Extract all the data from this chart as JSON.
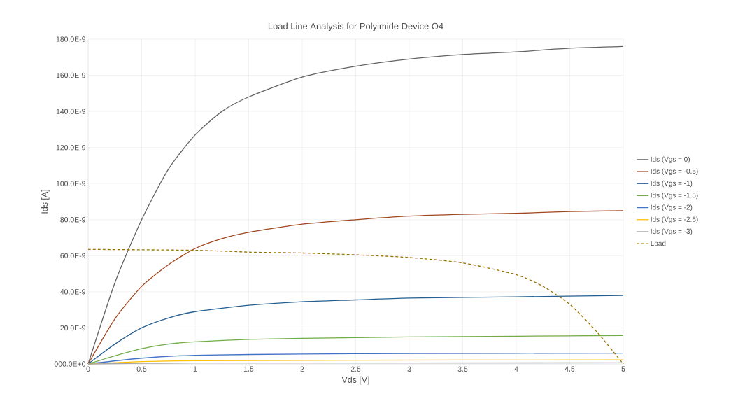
{
  "chart_data": {
    "type": "line",
    "title": "Load Line Analysis for Polyimide Device O4",
    "xlabel": "Vds [V]",
    "ylabel": "Ids [A]",
    "xlim": [
      0,
      5
    ],
    "xticks": [
      0,
      0.5,
      1,
      1.5,
      2,
      2.5,
      3,
      3.5,
      4,
      4.5,
      5
    ],
    "ylim": [
      0,
      1.8e-07
    ],
    "yticks": [
      {
        "value": 0,
        "label": "000.0E+0"
      },
      {
        "value": 2e-08,
        "label": "20.0E-9"
      },
      {
        "value": 4e-08,
        "label": "40.0E-9"
      },
      {
        "value": 6e-08,
        "label": "60.0E-9"
      },
      {
        "value": 8e-08,
        "label": "80.0E-9"
      },
      {
        "value": 1e-07,
        "label": "100.0E-9"
      },
      {
        "value": 1.2e-07,
        "label": "120.0E-9"
      },
      {
        "value": 1.4e-07,
        "label": "140.0E-9"
      },
      {
        "value": 1.6e-07,
        "label": "160.0E-9"
      },
      {
        "value": 1.8e-07,
        "label": "180.0E-9"
      }
    ],
    "grid": true,
    "legend": "right",
    "marker": "none",
    "line_style": "solid",
    "series": [
      {
        "name": "Ids (Vgs = 0)",
        "color": "#636363",
        "x": [
          0,
          0.25,
          0.5,
          0.75,
          1,
          1.25,
          1.5,
          2,
          2.5,
          3,
          3.5,
          4,
          4.5,
          5
        ],
        "values": [
          0,
          4.5e-08,
          8e-08,
          1.08e-07,
          1.27e-07,
          1.4e-07,
          1.48e-07,
          1.59e-07,
          1.65e-07,
          1.69e-07,
          1.715e-07,
          1.73e-07,
          1.75e-07,
          1.76e-07
        ]
      },
      {
        "name": "Ids (Vgs = -0.5)",
        "color": "#a0461e",
        "x": [
          0,
          0.25,
          0.5,
          0.75,
          1,
          1.25,
          1.5,
          2,
          2.5,
          3,
          3.5,
          4,
          4.5,
          5
        ],
        "values": [
          0,
          2.5e-08,
          4.3e-08,
          5.5e-08,
          6.4e-08,
          6.95e-08,
          7.3e-08,
          7.75e-08,
          8e-08,
          8.2e-08,
          8.3e-08,
          8.35e-08,
          8.45e-08,
          8.5e-08
        ]
      },
      {
        "name": "Ids (Vgs = -1)",
        "color": "#255e91",
        "x": [
          0,
          0.25,
          0.5,
          0.75,
          1,
          1.5,
          2,
          2.5,
          3,
          4,
          5
        ],
        "values": [
          0,
          1.1e-08,
          2e-08,
          2.55e-08,
          2.9e-08,
          3.25e-08,
          3.45e-08,
          3.55e-08,
          3.65e-08,
          3.72e-08,
          3.8e-08
        ]
      },
      {
        "name": "Ids (Vgs = -1.5)",
        "color": "#70ad47",
        "x": [
          0,
          0.25,
          0.5,
          0.75,
          1,
          1.5,
          2,
          3,
          4,
          5
        ],
        "values": [
          0,
          4.5e-09,
          8.5e-09,
          1.1e-08,
          1.23e-08,
          1.36e-08,
          1.42e-08,
          1.5e-08,
          1.54e-08,
          1.58e-08
        ]
      },
      {
        "name": "Ids (Vgs = -2)",
        "color": "#4472c4",
        "x": [
          0,
          0.5,
          1,
          2,
          3,
          5
        ],
        "values": [
          0,
          3.2e-09,
          4.8e-09,
          5.5e-09,
          5.8e-09,
          6e-09
        ]
      },
      {
        "name": "Ids (Vgs = -2.5)",
        "color": "#ffc000",
        "x": [
          0,
          0.5,
          1,
          2,
          5
        ],
        "values": [
          0,
          1.3e-09,
          1.8e-09,
          2e-09,
          2.3e-09
        ]
      },
      {
        "name": "Ids (Vgs = -3)",
        "color": "#a5a5a5",
        "x": [
          0,
          0.5,
          1,
          5
        ],
        "values": [
          0,
          3e-10,
          5e-10,
          6e-10
        ]
      },
      {
        "name": "Load",
        "color": "#997300",
        "line_style": "dashed",
        "x": [
          0,
          1,
          1.5,
          2,
          2.5,
          3,
          3.5,
          4,
          4.25,
          4.5,
          4.75,
          5
        ],
        "values": [
          6.35e-08,
          6.3e-08,
          6.2e-08,
          6.15e-08,
          6.05e-08,
          5.9e-08,
          5.6e-08,
          4.95e-08,
          4.3e-08,
          3.3e-08,
          1.8e-08,
          0
        ]
      }
    ]
  }
}
